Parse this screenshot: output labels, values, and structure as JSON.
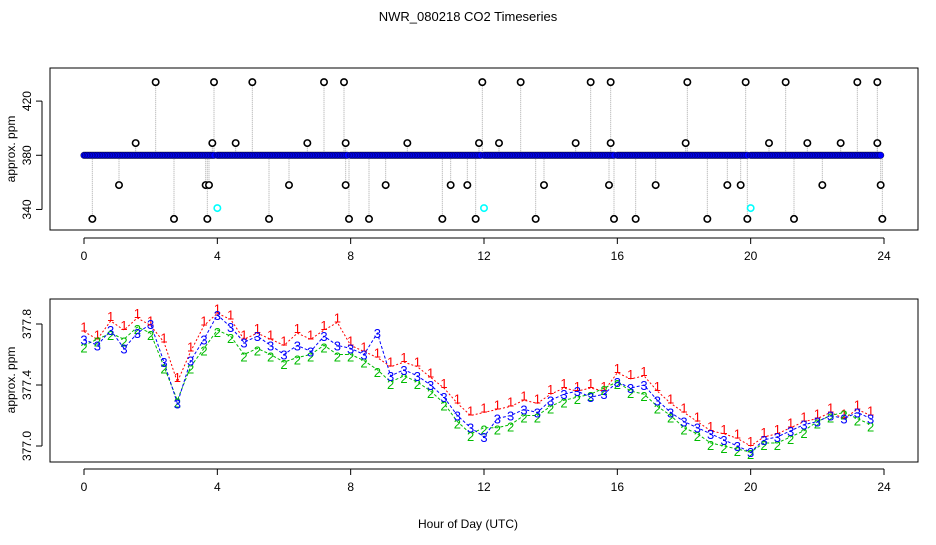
{
  "figure": {
    "title": "NWR_080218  CO2 Timeseries",
    "xlabel": "Hour of Day (UTC)"
  },
  "colors": {
    "series1": "#ff0000",
    "series2": "#00bb00",
    "series3": "#0000ff",
    "raw_dots": "#0000ff",
    "cal_dots": "#00ffff",
    "outliers": "#000000",
    "connector": "#aaaaaa"
  },
  "chart_data": [
    {
      "type": "scatter",
      "name": "raw-co2-panel",
      "ylabel": "approx. ppm",
      "xlim": [
        0,
        24
      ],
      "ylim": [
        330,
        440
      ],
      "xticks": [
        0,
        4,
        8,
        12,
        16,
        20,
        24
      ],
      "yticks": [
        340,
        380,
        420
      ],
      "baseline": 380,
      "baseline_segments": [
        [
          0.0,
          3.9
        ],
        [
          4.0,
          7.9
        ],
        [
          8.0,
          11.9
        ],
        [
          12.0,
          15.9
        ],
        [
          16.0,
          19.9
        ],
        [
          20.0,
          23.9
        ]
      ],
      "outliers_high": [
        2.15,
        3.9,
        5.05,
        7.2,
        7.8,
        11.95,
        13.1,
        15.2,
        15.8,
        18.1,
        19.85,
        21.05,
        23.2,
        23.8
      ],
      "outliers_mid": [
        1.55,
        3.85,
        4.55,
        6.7,
        7.85,
        9.7,
        11.85,
        12.45,
        14.75,
        15.8,
        18.05,
        20.55,
        21.7,
        22.7,
        23.8
      ],
      "outliers_low": [
        1.05,
        3.65,
        3.75,
        6.15,
        7.85,
        9.05,
        11.0,
        11.5,
        13.8,
        15.75,
        17.15,
        19.3,
        19.7,
        22.15,
        23.9
      ],
      "outliers_bottom": [
        0.25,
        2.7,
        3.7,
        5.55,
        7.95,
        8.55,
        10.75,
        11.75,
        13.55,
        15.9,
        16.55,
        18.7,
        19.9,
        21.3,
        23.95
      ],
      "calibration_x": [
        4.0,
        12.0,
        20.0
      ],
      "calibration_y": 341
    },
    {
      "type": "line",
      "name": "smoothed-co2-panel",
      "ylabel": "approx. ppm",
      "xlim": [
        0,
        24
      ],
      "ylim": [
        376.91,
        377.93
      ],
      "xticks": [
        0,
        4,
        8,
        12,
        16,
        20,
        24
      ],
      "yticks": [
        377.0,
        377.4,
        377.8
      ],
      "series": [
        {
          "name": "1",
          "marker": "1",
          "x": [
            0,
            0.4,
            0.8,
            1.2,
            1.6,
            2.0,
            2.4,
            2.8,
            3.2,
            3.6,
            4.0,
            4.4,
            4.8,
            5.2,
            5.6,
            6.0,
            6.4,
            6.8,
            7.2,
            7.6,
            8.0,
            8.4,
            8.8,
            9.2,
            9.6,
            10.0,
            10.4,
            10.8,
            11.2,
            11.6,
            12.0,
            12.4,
            12.8,
            13.2,
            13.6,
            14.0,
            14.4,
            14.8,
            15.2,
            15.6,
            16.0,
            16.4,
            16.8,
            17.2,
            17.6,
            18.0,
            18.4,
            18.8,
            19.2,
            19.6,
            20.0,
            20.4,
            20.8,
            21.2,
            21.6,
            22.0,
            22.4,
            22.8,
            23.2,
            23.6
          ],
          "values": [
            377.75,
            377.7,
            377.82,
            377.76,
            377.84,
            377.79,
            377.68,
            377.42,
            377.62,
            377.79,
            377.87,
            377.83,
            377.7,
            377.74,
            377.7,
            377.66,
            377.74,
            377.7,
            377.76,
            377.81,
            377.66,
            377.62,
            377.58,
            377.52,
            377.55,
            377.52,
            377.45,
            377.38,
            377.28,
            377.2,
            377.22,
            377.24,
            377.26,
            377.3,
            377.28,
            377.34,
            377.38,
            377.36,
            377.38,
            377.36,
            377.48,
            377.44,
            377.46,
            377.36,
            377.28,
            377.22,
            377.16,
            377.1,
            377.08,
            377.05,
            377.0,
            377.06,
            377.08,
            377.12,
            377.16,
            377.18,
            377.22,
            377.18,
            377.24,
            377.2
          ]
        },
        {
          "name": "2",
          "marker": "2",
          "x": [
            0,
            0.4,
            0.8,
            1.2,
            1.6,
            2.0,
            2.4,
            2.8,
            3.2,
            3.6,
            4.0,
            4.4,
            4.8,
            5.2,
            5.6,
            6.0,
            6.4,
            6.8,
            7.2,
            7.6,
            8.0,
            8.4,
            8.8,
            9.2,
            9.6,
            10.0,
            10.4,
            10.8,
            11.2,
            11.6,
            12.0,
            12.4,
            12.8,
            13.2,
            13.6,
            14.0,
            14.4,
            14.8,
            15.2,
            15.6,
            16.0,
            16.4,
            16.8,
            17.2,
            17.6,
            18.0,
            18.4,
            18.8,
            19.2,
            19.6,
            20.0,
            20.4,
            20.8,
            21.2,
            21.6,
            22.0,
            22.4,
            22.8,
            23.2,
            23.6
          ],
          "values": [
            377.66,
            377.7,
            377.74,
            377.7,
            377.78,
            377.74,
            377.52,
            377.3,
            377.52,
            377.64,
            377.76,
            377.72,
            377.6,
            377.64,
            377.6,
            377.55,
            377.58,
            377.6,
            377.66,
            377.6,
            377.6,
            377.56,
            377.5,
            377.42,
            377.46,
            377.42,
            377.36,
            377.28,
            377.16,
            377.08,
            377.12,
            377.12,
            377.14,
            377.2,
            377.2,
            377.26,
            377.3,
            377.32,
            377.34,
            377.38,
            377.42,
            377.36,
            377.34,
            377.26,
            377.2,
            377.12,
            377.08,
            377.02,
            377.0,
            376.98,
            376.96,
            377.02,
            377.02,
            377.06,
            377.1,
            377.16,
            377.2,
            377.22,
            377.18,
            377.14
          ]
        },
        {
          "name": "3",
          "marker": "3",
          "x": [
            0,
            0.4,
            0.8,
            1.2,
            1.6,
            2.0,
            2.4,
            2.8,
            3.2,
            3.6,
            4.0,
            4.4,
            4.8,
            5.2,
            5.6,
            6.0,
            6.4,
            6.8,
            7.2,
            7.6,
            8.0,
            8.4,
            8.8,
            9.2,
            9.6,
            10.0,
            10.4,
            10.8,
            11.2,
            11.6,
            12.0,
            12.4,
            12.8,
            13.2,
            13.6,
            14.0,
            14.4,
            14.8,
            15.2,
            15.6,
            16.0,
            16.4,
            16.8,
            17.2,
            17.6,
            18.0,
            18.4,
            18.8,
            19.2,
            19.6,
            20.0,
            20.4,
            20.8,
            21.2,
            21.6,
            22.0,
            22.4,
            22.8,
            23.2,
            23.6
          ],
          "values": [
            377.7,
            377.66,
            377.76,
            377.64,
            377.74,
            377.8,
            377.55,
            377.28,
            377.56,
            377.7,
            377.86,
            377.78,
            377.68,
            377.72,
            377.66,
            377.6,
            377.66,
            377.62,
            377.72,
            377.66,
            377.64,
            377.6,
            377.74,
            377.46,
            377.5,
            377.46,
            377.4,
            377.32,
            377.2,
            377.12,
            377.06,
            377.18,
            377.2,
            377.24,
            377.22,
            377.3,
            377.34,
            377.36,
            377.32,
            377.34,
            377.42,
            377.38,
            377.4,
            377.3,
            377.22,
            377.16,
            377.12,
            377.08,
            377.04,
            377.0,
            376.96,
            377.04,
            377.06,
            377.1,
            377.14,
            377.16,
            377.2,
            377.18,
            377.22,
            377.18
          ]
        }
      ]
    }
  ]
}
